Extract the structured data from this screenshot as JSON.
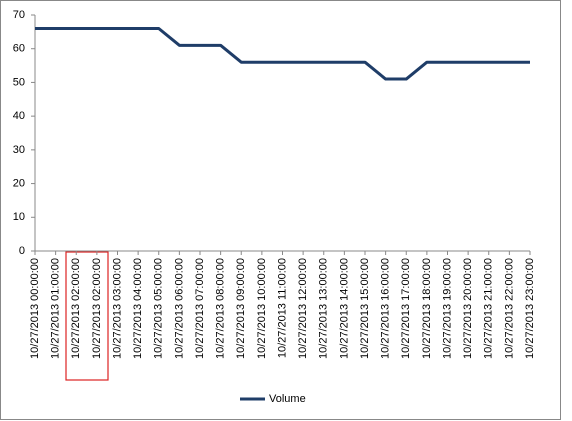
{
  "chart_data": {
    "type": "line",
    "categories": [
      "10/27/2013 00:00:00",
      "10/27/2013 01:00:00",
      "10/27/2013 02:00:00",
      "10/27/2013 02:00:00",
      "10/27/2013 03:00:00",
      "10/27/2013 04:00:00",
      "10/27/2013 05:00:00",
      "10/27/2013 06:00:00",
      "10/27/2013 07:00:00",
      "10/27/2013 08:00:00",
      "10/27/2013 09:00:00",
      "10/27/2013 10:00:00",
      "10/27/2013 11:00:00",
      "10/27/2013 12:00:00",
      "10/27/2013 13:00:00",
      "10/27/2013 14:00:00",
      "10/27/2013 15:00:00",
      "10/27/2013 16:00:00",
      "10/27/2013 17:00:00",
      "10/27/2013 18:00:00",
      "10/27/2013 19:00:00",
      "10/27/2013 20:00:00",
      "10/27/2013 21:00:00",
      "10/27/2013 22:00:00",
      "10/27/2013 23:00:00"
    ],
    "series": [
      {
        "name": "Volume",
        "color": "#1f3d68",
        "values": [
          66,
          66,
          66,
          66,
          66,
          66,
          66,
          61,
          61,
          61,
          56,
          56,
          56,
          56,
          56,
          56,
          56,
          51,
          51,
          56,
          56,
          56,
          56,
          56,
          56
        ]
      }
    ],
    "ylim": [
      0,
      70
    ],
    "yticks": [
      0,
      10,
      20,
      30,
      40,
      50,
      60,
      70
    ],
    "grid": false,
    "legend": "bottom"
  }
}
